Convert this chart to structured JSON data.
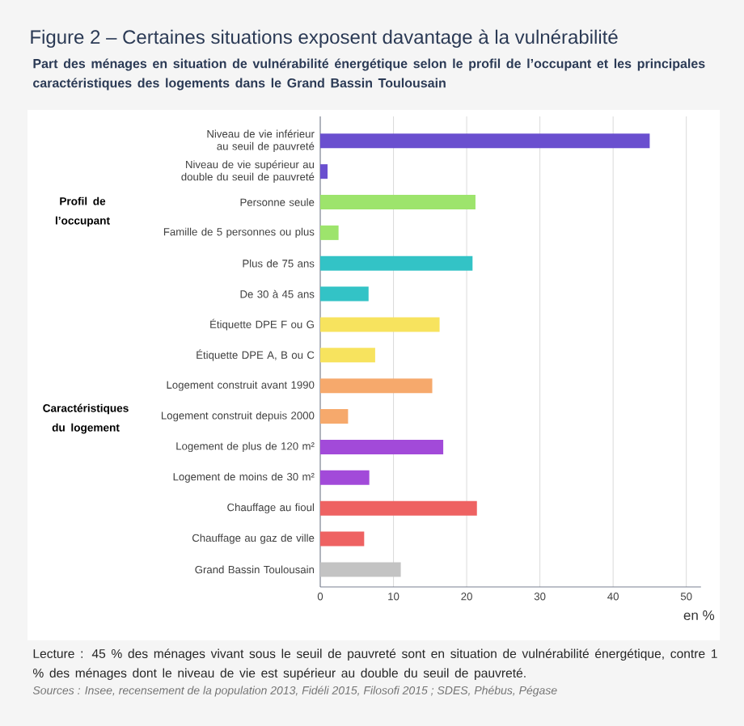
{
  "chart_data": {
    "type": "bar",
    "orientation": "horizontal",
    "title": "Figure 2 – Certaines situations exposent davantage à la vulnérabilité",
    "subtitle": "Part des ménages en situation de vulnérabilité énergétique selon le profil de l’occupant et les principales caractéristiques des logements dans le Grand Bassin Toulousain",
    "xlabel": "en %",
    "categories": [
      "Niveau de vie inférieur au seuil de pauvreté",
      "Niveau de vie supérieur au double du seuil de pauvreté",
      "Personne seule",
      "Famille de 5 personnes ou plus",
      "Plus de 75 ans",
      "De 30 à 45 ans",
      "Étiquette DPE F ou G",
      "Étiquette DPE A, B ou C",
      "Logement construit avant 1990",
      "Logement construit depuis 2000",
      "Logement de plus de 120 m²",
      "Logement de moins de 30 m²",
      "Chauffage au fioul",
      "Chauffage au gaz de ville",
      "Grand Bassin Toulousain"
    ],
    "values": [
      45,
      1,
      21.2,
      2.5,
      20.8,
      6.6,
      16.3,
      7.5,
      15.3,
      3.8,
      16.8,
      6.7,
      21.4,
      6.0,
      11.0
    ],
    "colors": [
      "#6a4fcf",
      "#6a4fcf",
      "#9de46c",
      "#9de46c",
      "#33c3c6",
      "#33c3c6",
      "#f7e35e",
      "#f7e35e",
      "#f6a96c",
      "#f6a96c",
      "#a24ad9",
      "#a24ad9",
      "#ee6262",
      "#ee6262",
      "#c3c3c3"
    ],
    "xlim": [
      0,
      52
    ],
    "xticks": [
      0,
      10,
      20,
      30,
      40,
      50
    ],
    "grid": "x",
    "annotations": [
      "Lecture : 45 % des ménages vivant sous le seuil de pauvreté sont en situation de vulnérabilité énergétique, contre 1 % des ménages dont le niveau de vie est supérieur au double du seuil de pauvreté.",
      "Sources : Insee, recensement de la population 2013, Fidéli 2015, Filosofi 2015 ; SDES, Phébus, Pégase",
      "Profil de l’occupant",
      "Caractéristiques du logement"
    ]
  }
}
